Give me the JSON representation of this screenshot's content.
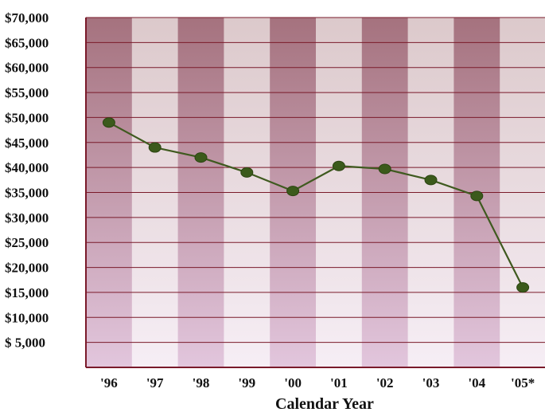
{
  "chart_data": {
    "type": "line",
    "title": "",
    "xlabel": "Calendar Year",
    "ylabel": "",
    "categories": [
      "'96",
      "'97",
      "'98",
      "'99",
      "'00",
      "'01",
      "'02",
      "'03",
      "'04",
      "'05*"
    ],
    "series": [
      {
        "values": [
          49000,
          44000,
          42000,
          39000,
          35300,
          40300,
          39700,
          37500,
          34300,
          16000
        ]
      }
    ],
    "y_tick_labels": [
      "$70,000",
      "$65,000",
      "$60,000",
      "$55,000",
      "$50,000",
      "$45,000",
      "$40,000",
      "$35,000",
      "$30,000",
      "$25,000",
      "$20,000",
      "$15,000",
      "$10,000",
      "$ 5,000"
    ],
    "y_tick_values": [
      70000,
      65000,
      60000,
      55000,
      50000,
      45000,
      40000,
      35000,
      30000,
      25000,
      20000,
      15000,
      10000,
      5000
    ],
    "ylim": [
      0,
      70000
    ],
    "grid": true,
    "colors": {
      "line": "#3f5a1f",
      "marker": "#3b5a1b",
      "gridline": "#7a1a2a",
      "axis": "#7a1a2a",
      "band_dark_top": "#a5727e",
      "band_dark_bottom": "#e2c6dd",
      "band_light_top": "#dcc9cb",
      "band_light_bottom": "#f6eef5"
    }
  }
}
